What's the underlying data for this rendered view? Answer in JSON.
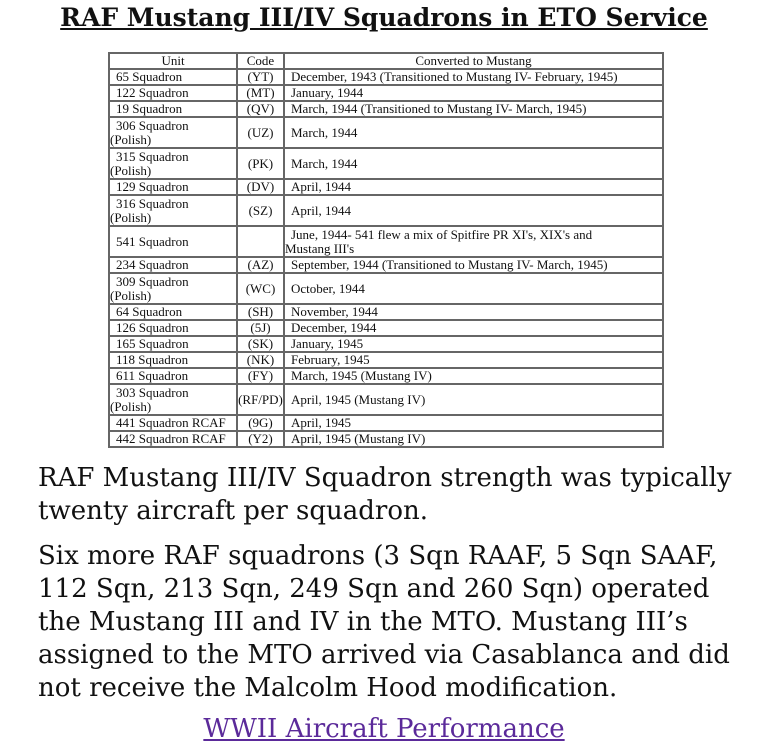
{
  "title": "RAF Mustang III/IV Squadrons in ETO Service",
  "table": {
    "headers": [
      "Unit",
      "Code",
      "Converted to Mustang"
    ],
    "rows": [
      {
        "unit": "65 Squadron",
        "unit2": "",
        "code": "(YT)",
        "conv": "December, 1943 (Transitioned to Mustang IV- February, 1945)",
        "conv2": ""
      },
      {
        "unit": "122 Squadron",
        "unit2": "",
        "code": "(MT)",
        "conv": "January, 1944",
        "conv2": ""
      },
      {
        "unit": "19 Squadron",
        "unit2": "",
        "code": "(QV)",
        "conv": "March, 1944 (Transitioned to Mustang IV- March, 1945)",
        "conv2": ""
      },
      {
        "unit": "306 Squadron",
        "unit2": "(Polish)",
        "code": "(UZ)",
        "conv": "March, 1944",
        "conv2": ""
      },
      {
        "unit": "315 Squadron",
        "unit2": "(Polish)",
        "code": "(PK)",
        "conv": "March, 1944",
        "conv2": ""
      },
      {
        "unit": "129 Squadron",
        "unit2": "",
        "code": "(DV)",
        "conv": "April, 1944",
        "conv2": ""
      },
      {
        "unit": "316 Squadron",
        "unit2": "(Polish)",
        "code": "(SZ)",
        "conv": "April, 1944",
        "conv2": ""
      },
      {
        "unit": "541 Squadron",
        "unit2": "",
        "code": "",
        "conv": "June, 1944- 541 flew a mix of Spitfire PR XI's, XIX's and",
        "conv2": "Mustang III's"
      },
      {
        "unit": "234 Squadron",
        "unit2": "",
        "code": "(AZ)",
        "conv": "September, 1944 (Transitioned to Mustang IV- March, 1945)",
        "conv2": ""
      },
      {
        "unit": "309 Squadron",
        "unit2": "(Polish)",
        "code": "(WC)",
        "conv": "October, 1944",
        "conv2": ""
      },
      {
        "unit": "64 Squadron",
        "unit2": "",
        "code": "(SH)",
        "conv": "November, 1944",
        "conv2": ""
      },
      {
        "unit": "126 Squadron",
        "unit2": "",
        "code": "(5J)",
        "conv": "December, 1944",
        "conv2": ""
      },
      {
        "unit": "165 Squadron",
        "unit2": "",
        "code": "(SK)",
        "conv": "January, 1945",
        "conv2": ""
      },
      {
        "unit": "118 Squadron",
        "unit2": "",
        "code": "(NK)",
        "conv": "February, 1945",
        "conv2": ""
      },
      {
        "unit": "611 Squadron",
        "unit2": "",
        "code": "(FY)",
        "conv": "March, 1945 (Mustang IV)",
        "conv2": ""
      },
      {
        "unit": "303 Squadron",
        "unit2": "(Polish)",
        "code": "(RF/PD)",
        "conv": "April, 1945 (Mustang IV)",
        "conv2": ""
      },
      {
        "unit": "441 Squadron RCAF",
        "unit2": "",
        "code": "(9G)",
        "conv": "April, 1945",
        "conv2": ""
      },
      {
        "unit": "442 Squadron RCAF",
        "unit2": "",
        "code": "(Y2)",
        "conv": "April, 1945 (Mustang IV)",
        "conv2": ""
      }
    ]
  },
  "paragraphs": [
    "RAF Mustang III/IV Squadron strength was typically twenty aircraft per squadron.",
    "Six more RAF squadrons (3 Sqn RAAF, 5 Sqn SAAF, 112 Sqn, 213 Sqn, 249 Sqn and 260 Sqn) operated the Mustang III and IV in the MTO. Mustang III’s assigned to the MTO arrived via Casablanca and did not receive the Malcolm Hood modification."
  ],
  "link": {
    "label": "WWII Aircraft Performance",
    "color": "#5b2a9a"
  }
}
